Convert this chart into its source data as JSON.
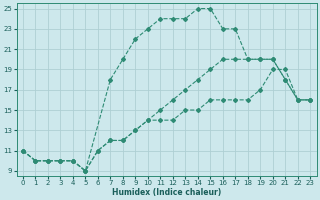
{
  "xlabel": "Humidex (Indice chaleur)",
  "xlim": [
    -0.5,
    23.5
  ],
  "ylim": [
    8.5,
    25.5
  ],
  "xticks": [
    0,
    1,
    2,
    3,
    4,
    5,
    6,
    7,
    8,
    9,
    10,
    11,
    12,
    13,
    14,
    15,
    16,
    17,
    18,
    19,
    20,
    21,
    22,
    23
  ],
  "yticks": [
    9,
    11,
    13,
    15,
    17,
    19,
    21,
    23,
    25
  ],
  "bg_color": "#cde8ec",
  "line_color": "#2e8b74",
  "grid_color": "#aecfd4",
  "lines": [
    {
      "x": [
        0,
        1,
        2,
        3,
        4,
        5,
        6,
        7,
        8,
        9,
        10,
        11,
        12,
        13,
        14,
        15,
        16,
        17,
        18,
        19,
        20,
        21,
        22,
        23
      ],
      "y": [
        11,
        10,
        10,
        10,
        10,
        9,
        11,
        12,
        12,
        13,
        14,
        14,
        14,
        15,
        15,
        16,
        16,
        16,
        16,
        17,
        19,
        19,
        16,
        16
      ]
    },
    {
      "x": [
        0,
        1,
        2,
        3,
        4,
        5,
        6,
        7,
        8,
        9,
        10,
        11,
        12,
        13,
        14,
        15,
        16,
        17,
        18,
        19,
        20,
        21,
        22,
        23
      ],
      "y": [
        11,
        10,
        10,
        10,
        10,
        9,
        11,
        12,
        12,
        13,
        14,
        15,
        16,
        17,
        18,
        19,
        20,
        20,
        20,
        20,
        20,
        18,
        16,
        16
      ]
    },
    {
      "x": [
        0,
        1,
        2,
        3,
        4,
        5,
        7,
        8,
        9,
        10,
        11,
        12,
        13,
        14,
        15,
        16,
        17,
        18,
        19,
        20,
        21,
        22,
        23
      ],
      "y": [
        11,
        10,
        10,
        10,
        10,
        9,
        18,
        20,
        22,
        23,
        24,
        24,
        24,
        25,
        25,
        23,
        23,
        20,
        20,
        20,
        18,
        16,
        16
      ]
    }
  ]
}
